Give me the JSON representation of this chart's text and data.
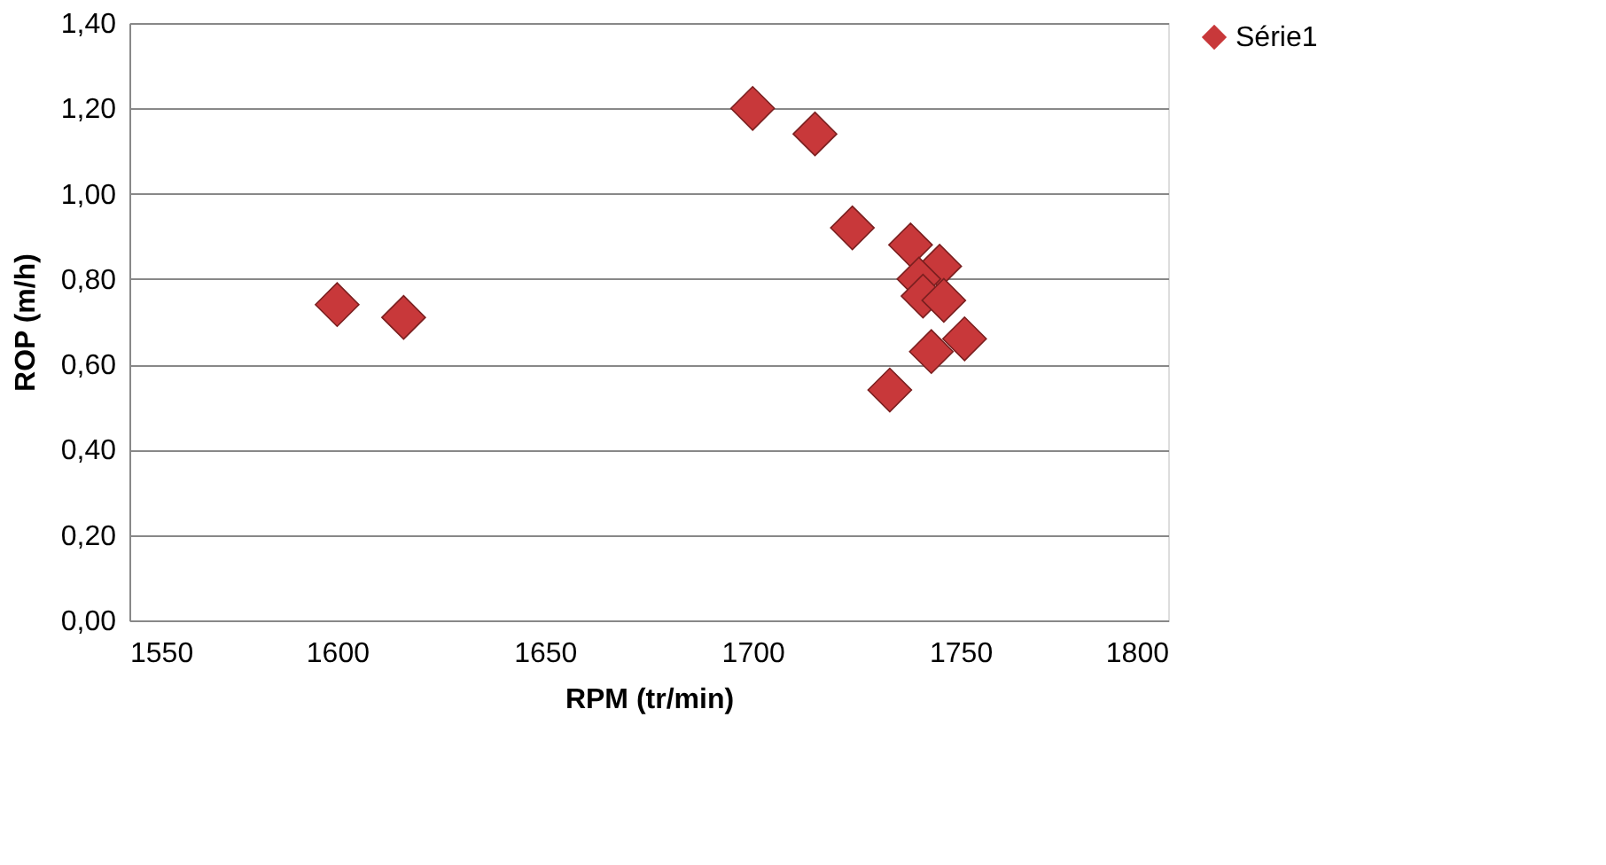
{
  "chart_data": {
    "type": "scatter",
    "xlabel": "RPM (tr/min)",
    "ylabel": "ROP (m/h)",
    "xlim": [
      1550,
      1800
    ],
    "xticks": [
      1550,
      1600,
      1650,
      1700,
      1750,
      1800
    ],
    "ylim": [
      0,
      1.4
    ],
    "yticks": [
      {
        "value": 0,
        "label": "0,00"
      },
      {
        "value": 0.2,
        "label": "0,20"
      },
      {
        "value": 0.4,
        "label": "0,40"
      },
      {
        "value": 0.6,
        "label": "0,60"
      },
      {
        "value": 0.8,
        "label": "0,80"
      },
      {
        "value": 1.0,
        "label": "1,00"
      },
      {
        "value": 1.2,
        "label": "1,20"
      },
      {
        "value": 1.4,
        "label": "1,40"
      }
    ],
    "grid": "y",
    "legend": "right",
    "marker": "diamond",
    "series": [
      {
        "name": "Série1",
        "color": "#c8383a",
        "x": [
          1600,
          1616,
          1700,
          1715,
          1724,
          1738,
          1745,
          1740,
          1741,
          1746,
          1751,
          1743,
          1733
        ],
        "values": [
          0.74,
          0.71,
          1.2,
          1.14,
          0.92,
          0.88,
          0.83,
          0.8,
          0.76,
          0.75,
          0.66,
          0.63,
          0.54
        ]
      }
    ]
  }
}
